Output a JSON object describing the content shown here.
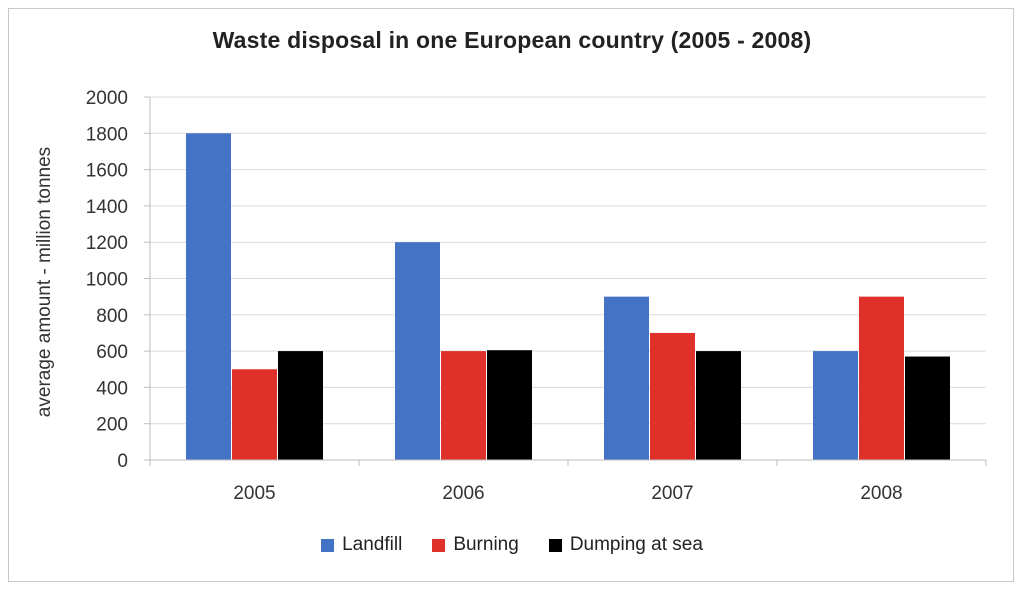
{
  "chart_data": {
    "type": "bar",
    "title": "Waste disposal in one European country (2005 - 2008)",
    "ylabel": "average amount - million tonnes",
    "xlabel": "",
    "categories": [
      "2005",
      "2006",
      "2007",
      "2008"
    ],
    "series": [
      {
        "name": "Landfill",
        "color": "#4472c4",
        "values": [
          1800,
          1200,
          900,
          600
        ]
      },
      {
        "name": "Burning",
        "color": "#e0302a",
        "values": [
          500,
          600,
          700,
          900
        ]
      },
      {
        "name": "Dumping at sea",
        "color": "#000000",
        "values": [
          600,
          605,
          600,
          570
        ]
      }
    ],
    "ylim": [
      0,
      2000
    ],
    "yticks": [
      "0",
      "200",
      "400",
      "600",
      "800",
      "1000",
      "1200",
      "1400",
      "1600",
      "1800",
      "2000"
    ],
    "grid": true,
    "legend_position": "bottom"
  }
}
